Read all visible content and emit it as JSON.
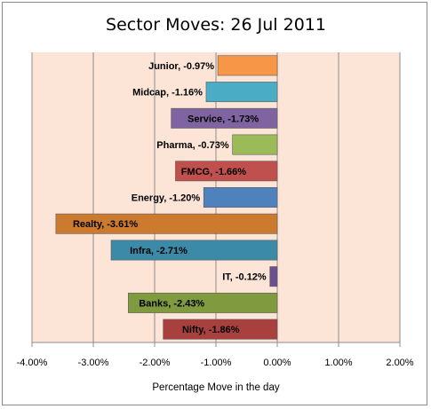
{
  "chart_data": {
    "type": "bar",
    "orientation": "horizontal",
    "title": "Sector Moves: 26 Jul 2011",
    "xlabel": "Percentage Move in the day",
    "ylabel": "",
    "xlim": [
      -0.04,
      0.02
    ],
    "x_ticks": [
      -0.04,
      -0.03,
      -0.02,
      -0.01,
      0.0,
      0.01,
      0.02
    ],
    "x_tick_labels": [
      "-4.00%",
      "-3.00%",
      "-2.00%",
      "-1.00%",
      "0.00%",
      "1.00%",
      "2.00%"
    ],
    "grid": "vertical",
    "legend": "none",
    "plot_background": "#fce4d6",
    "categories": [
      "Junior",
      "Midcap",
      "Service",
      "Pharma",
      "FMCG",
      "Energy",
      "Realty",
      "Infra",
      "IT",
      "Banks",
      "Nifty"
    ],
    "values": [
      -0.0097,
      -0.0116,
      -0.0173,
      -0.0073,
      -0.0166,
      -0.012,
      -0.0361,
      -0.0271,
      -0.0012,
      -0.0243,
      -0.0186
    ],
    "data_labels": [
      "Junior, -0.97%",
      "Midcap, -1.16%",
      "Service, -1.73%",
      "Pharma, -0.73%",
      "FMCG, -1.66%",
      "Energy, -1.20%",
      "Realty, -3.61%",
      "Infra, -2.71%",
      "IT, -0.12%",
      "Banks, -2.43%",
      "Nifty, -1.86%"
    ],
    "colors": [
      "#f79646",
      "#4bacc6",
      "#8064a2",
      "#9bbb59",
      "#c0504d",
      "#4f81bd",
      "#cc7a2e",
      "#3a8aa8",
      "#6b4f8f",
      "#7f9a3f",
      "#a8413d"
    ]
  }
}
